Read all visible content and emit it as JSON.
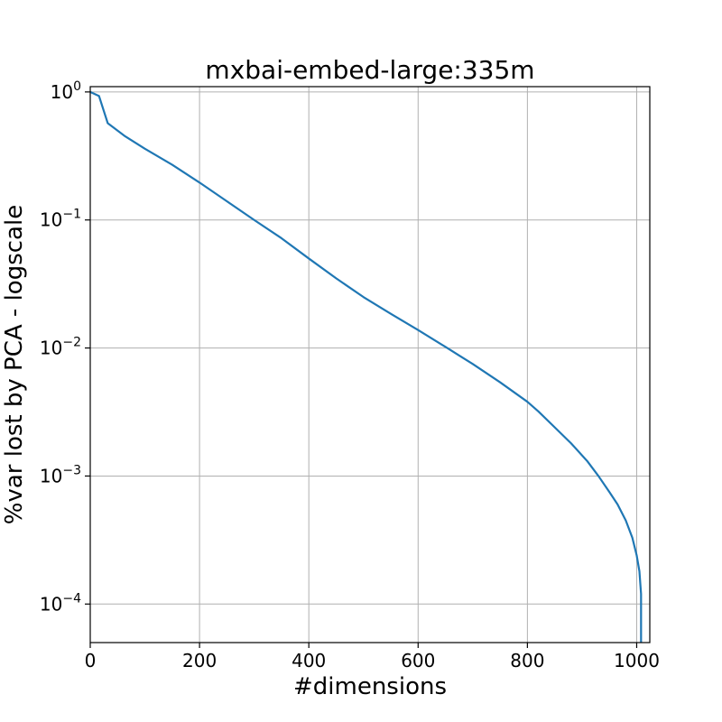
{
  "chart_data": {
    "type": "line",
    "title": "mxbai-embed-large:335m",
    "xlabel": "#dimensions",
    "ylabel": "%var lost by PCA - logscale",
    "xscale": "linear",
    "yscale": "log",
    "xlim": [
      0,
      1024
    ],
    "ylim": [
      5e-05,
      1.1
    ],
    "grid": true,
    "x_ticks": [
      0,
      200,
      400,
      600,
      800,
      1000
    ],
    "x_tick_labels": [
      "0",
      "200",
      "400",
      "600",
      "800",
      "1000"
    ],
    "y_ticks": [
      1,
      0.1,
      0.01,
      0.001,
      0.0001
    ],
    "y_tick_labels": [
      {
        "base": "10",
        "exp": "0"
      },
      {
        "base": "10",
        "exp": "−1"
      },
      {
        "base": "10",
        "exp": "−2"
      },
      {
        "base": "10",
        "exp": "−3"
      },
      {
        "base": "10",
        "exp": "−4"
      }
    ],
    "series": [
      {
        "color": "#1f77b4",
        "x": [
          0,
          16,
          32,
          64,
          100,
          150,
          200,
          250,
          300,
          350,
          400,
          450,
          500,
          550,
          600,
          650,
          700,
          750,
          800,
          820,
          850,
          880,
          910,
          930,
          950,
          965,
          980,
          992,
          1000,
          1005,
          1008,
          1008
        ],
        "y": [
          1.0,
          0.93,
          0.57,
          0.45,
          0.36,
          0.27,
          0.196,
          0.14,
          0.1,
          0.072,
          0.05,
          0.035,
          0.025,
          0.0185,
          0.0138,
          0.0102,
          0.0075,
          0.0054,
          0.0038,
          0.0032,
          0.0024,
          0.0018,
          0.0013,
          0.001,
          0.00075,
          0.0006,
          0.00045,
          0.00033,
          0.00024,
          0.00018,
          0.00012,
          5e-05
        ]
      }
    ]
  }
}
